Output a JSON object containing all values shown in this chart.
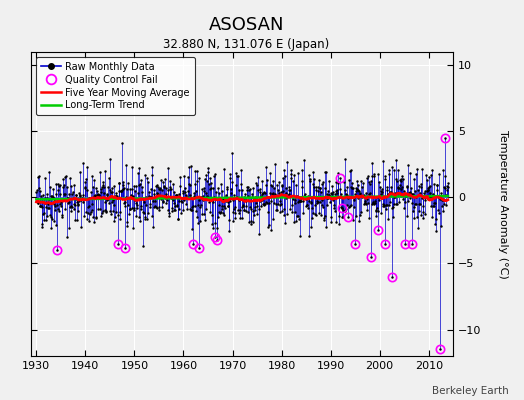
{
  "title": "ASOSAN",
  "subtitle": "32.880 N, 131.076 E (Japan)",
  "ylabel": "Temperature Anomaly (°C)",
  "watermark": "Berkeley Earth",
  "xlim": [
    1929,
    2015
  ],
  "ylim": [
    -12,
    11
  ],
  "yticks": [
    -10,
    -5,
    0,
    5,
    10
  ],
  "xticks": [
    1930,
    1940,
    1950,
    1960,
    1970,
    1980,
    1990,
    2000,
    2010
  ],
  "start_year": 1930,
  "end_year": 2013,
  "bg_color": "#f0f0f0",
  "plot_bg_color": "#f0f0f0",
  "grid_color": "white",
  "raw_line_color": "#0000cc",
  "raw_marker_color": "#000000",
  "ma_color": "#ff0000",
  "trend_color": "#00cc00",
  "qc_color": "#ff00ff",
  "trend_slope": 0.003,
  "trend_intercept": -0.15,
  "ma_window": 60,
  "seed": 42
}
